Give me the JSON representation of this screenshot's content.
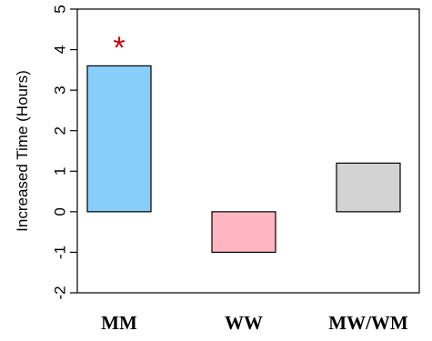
{
  "chart_data": {
    "type": "bar",
    "title": "",
    "xlabel": "",
    "ylabel": "Increased Time (Hours)",
    "ylim": [
      -2,
      5
    ],
    "yticks": [
      -2,
      -1,
      0,
      1,
      2,
      3,
      4,
      5
    ],
    "grid": false,
    "categories": [
      "MM",
      "WW",
      "MW/WM"
    ],
    "values": [
      3.6,
      -1.0,
      1.2
    ],
    "colors": [
      "#87CEFA",
      "#FFB6C1",
      "#D3D3D3"
    ],
    "annotations": [
      {
        "category": "MM",
        "text": "*",
        "y": 4.1,
        "color": "#CC0000"
      }
    ]
  }
}
